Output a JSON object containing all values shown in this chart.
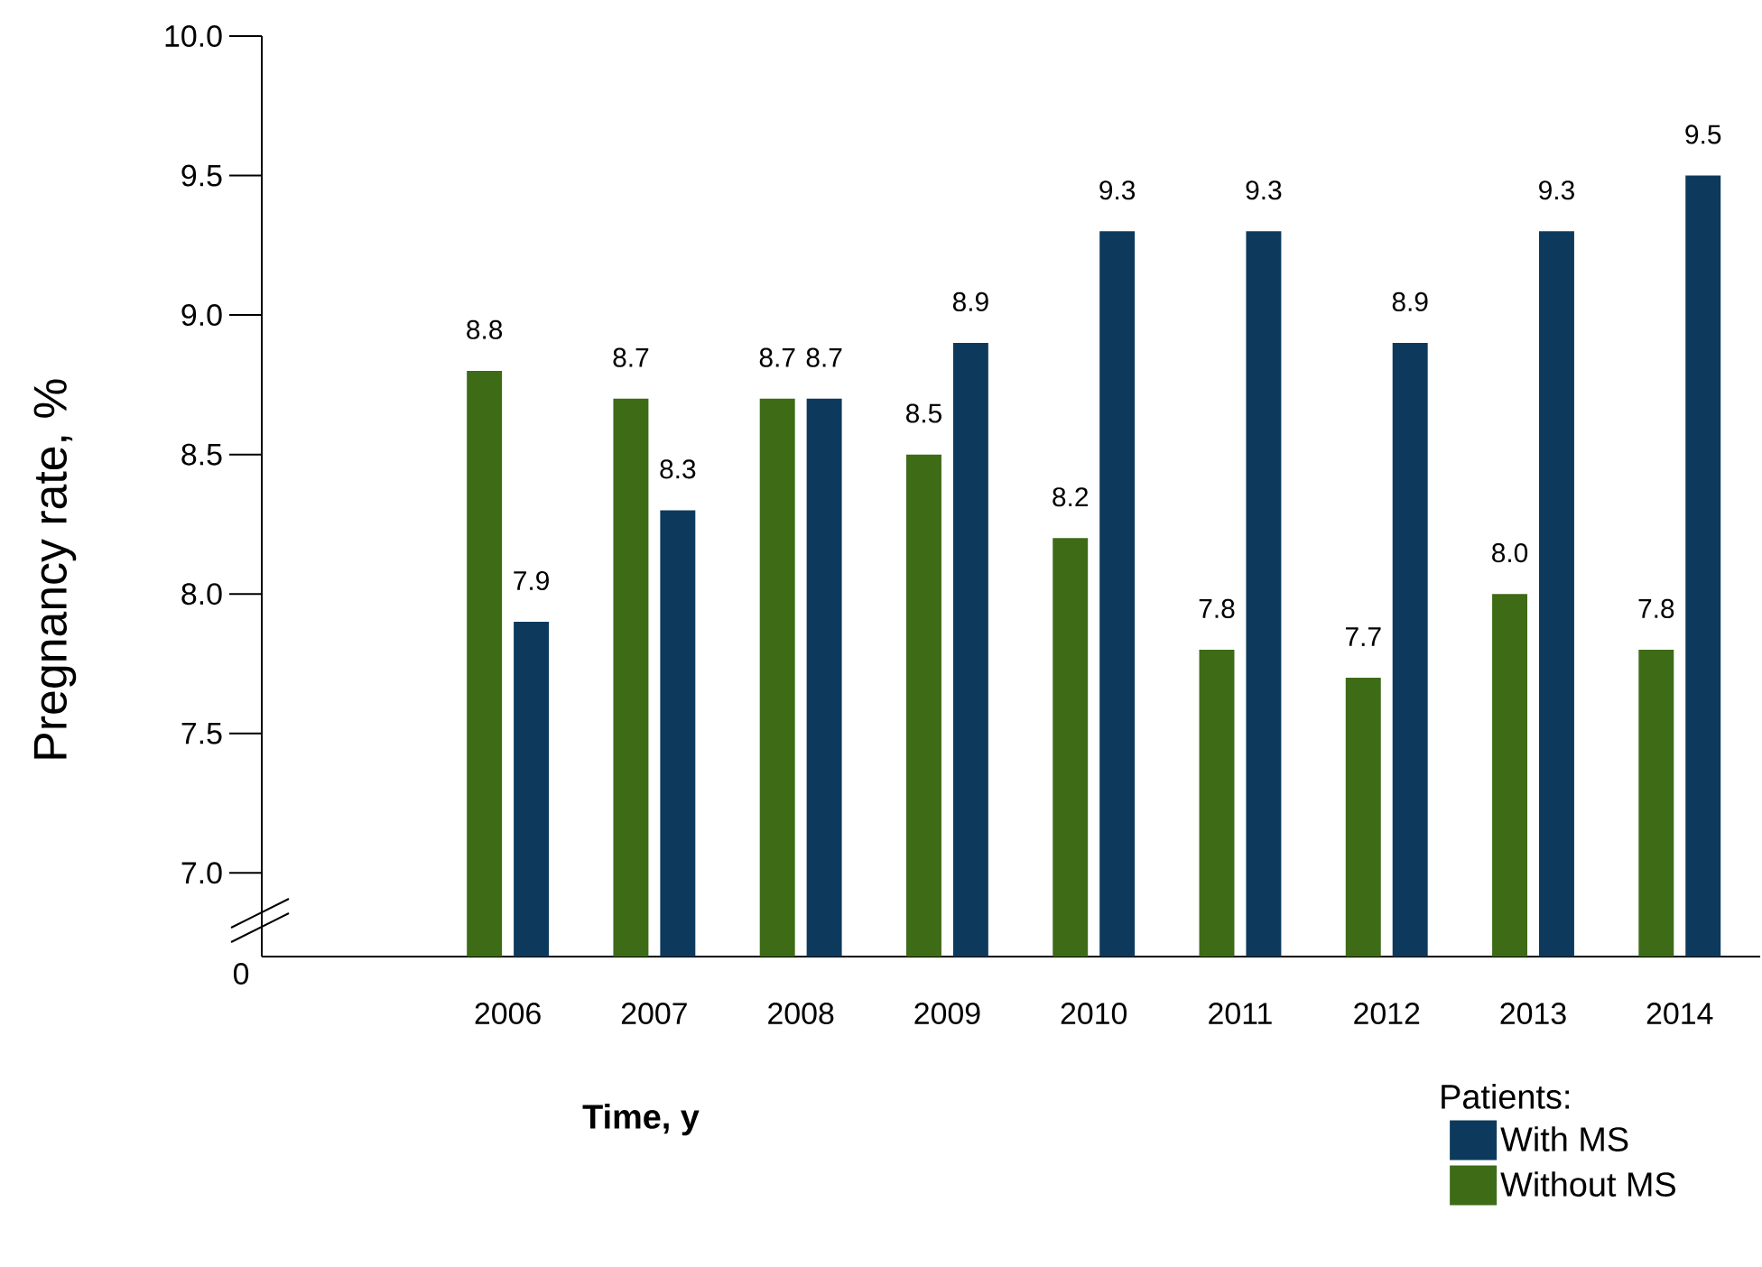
{
  "chart_data": {
    "type": "bar",
    "xlabel": "Time, y",
    "ylabel": "Pregnancy rate, %",
    "legend_title": "Patients:",
    "categories": [
      "2006",
      "2007",
      "2008",
      "2009",
      "2010",
      "2011",
      "2012",
      "2013",
      "2014"
    ],
    "series": [
      {
        "name": "With MS",
        "color": "#0d3a5c",
        "values": [
          7.9,
          8.3,
          8.7,
          8.9,
          9.3,
          9.3,
          8.9,
          9.3,
          9.5
        ],
        "value_labels": [
          "7.9",
          "8.3",
          "8.7",
          "8.9",
          "9.3",
          "9.3",
          "8.9",
          "9.3",
          "9.5"
        ]
      },
      {
        "name": "Without MS",
        "color": "#3d6b16",
        "values": [
          8.8,
          8.7,
          8.7,
          8.5,
          8.2,
          7.8,
          7.7,
          8.0,
          7.8
        ],
        "value_labels": [
          "8.8",
          "8.7",
          "8.7",
          "8.5",
          "8.2",
          "7.8",
          "7.7",
          "8.0",
          "7.8"
        ]
      }
    ],
    "ylim": [
      6.7,
      10.0
    ],
    "yticks": [
      {
        "value": 7.0,
        "label": "7.0"
      },
      {
        "value": 7.5,
        "label": "7.5"
      },
      {
        "value": 8.0,
        "label": "8.0"
      },
      {
        "value": 8.5,
        "label": "8.5"
      },
      {
        "value": 9.0,
        "label": "9.0"
      },
      {
        "value": 9.5,
        "label": "9.5"
      },
      {
        "value": 10.0,
        "label": "10.0"
      }
    ],
    "annotations": [
      "0"
    ],
    "grid": false,
    "legend": "bottom right"
  }
}
